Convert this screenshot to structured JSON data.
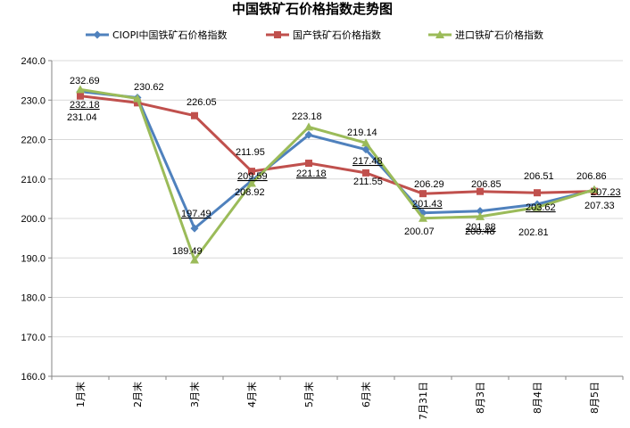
{
  "chart_data": {
    "type": "line",
    "title": "中国铁矿石价格指数走势图",
    "categories": [
      "1月末",
      "2月末",
      "3月末",
      "4月末",
      "5月末",
      "6月末",
      "7月31日",
      "8月3日",
      "8月4日",
      "8月5日"
    ],
    "ylim": [
      160,
      240
    ],
    "yticks": [
      "160.0",
      "170.0",
      "180.0",
      "190.0",
      "200.0",
      "210.0",
      "220.0",
      "230.0",
      "240.0"
    ],
    "grid": true,
    "legend_position": "top",
    "series": [
      {
        "name": "CIOPI中国铁矿石价格指数",
        "color": "#4F81BD",
        "marker": "diamond",
        "values": [
          232.18,
          230.62,
          197.49,
          209.59,
          221.18,
          217.48,
          201.43,
          201.88,
          203.62,
          207.23
        ]
      },
      {
        "name": "国产铁矿石价格指数",
        "color": "#C0504D",
        "marker": "square",
        "values": [
          231.04,
          229.3,
          226.05,
          211.95,
          214.0,
          211.55,
          206.29,
          206.85,
          206.51,
          206.86
        ]
      },
      {
        "name": "进口铁矿石价格指数",
        "color": "#9BBB59",
        "marker": "triangle",
        "values": [
          232.69,
          230.4,
          189.49,
          208.92,
          223.18,
          219.14,
          200.07,
          200.48,
          202.81,
          207.33
        ]
      }
    ],
    "data_labels": [
      {
        "text": "232.69"
      },
      {
        "text": "232.18"
      },
      {
        "text": "231.04"
      },
      {
        "text": "230.62"
      },
      {
        "text": "226.05"
      },
      {
        "text": "197.49"
      },
      {
        "text": "189.49"
      },
      {
        "text": "211.95"
      },
      {
        "text": "209.59"
      },
      {
        "text": "208.92"
      },
      {
        "text": "223.18"
      },
      {
        "text": "221.18"
      },
      {
        "text": "219.14"
      },
      {
        "text": "217.48"
      },
      {
        "text": "211.55"
      },
      {
        "text": "206.29"
      },
      {
        "text": "201.43"
      },
      {
        "text": "200.07"
      },
      {
        "text": "206.85"
      },
      {
        "text": "201.88"
      },
      {
        "text": "200.48"
      },
      {
        "text": "206.51"
      },
      {
        "text": "203.62"
      },
      {
        "text": "202.81"
      },
      {
        "text": "206.86"
      },
      {
        "text": "207.23"
      },
      {
        "text": "207.33"
      }
    ]
  }
}
